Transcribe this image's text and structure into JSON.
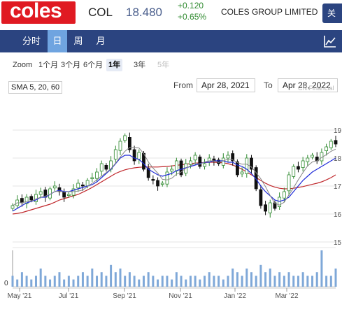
{
  "header": {
    "logo_text": "coles",
    "ticker": "COL",
    "price": "18.480",
    "change_abs": "+0.120",
    "change_pct": "+0.65%",
    "company": "COLES GROUP LIMITED",
    "close_label": "关",
    "brand_color": "#e01a22",
    "nav_color": "#2b4480"
  },
  "nav": {
    "tabs": [
      {
        "label": "分时",
        "active": false
      },
      {
        "label": "日",
        "active": true
      },
      {
        "label": "周",
        "active": false
      },
      {
        "label": "月",
        "active": false
      }
    ],
    "chart_icon": "line-chart-icon"
  },
  "zoom": {
    "label": "Zoom",
    "options": [
      {
        "label": "1个月",
        "state": "normal"
      },
      {
        "label": "3个月",
        "state": "normal"
      },
      {
        "label": "6个月",
        "state": "normal"
      },
      {
        "label": "1年",
        "state": "active"
      },
      {
        "label": "3年",
        "state": "normal"
      },
      {
        "label": "5年",
        "state": "disabled"
      }
    ]
  },
  "controls": {
    "sma_label": "SMA 5, 20, 60",
    "from_label": "From",
    "from_value": "Apr 28, 2021",
    "to_label": "To",
    "to_value": "Apr 28, 2022",
    "watermark": "CN Financial"
  },
  "chart_data": {
    "type": "line",
    "x_ticks": [
      "May '21",
      "Jul '21",
      "Sep '21",
      "Nov '21",
      "Jan '22",
      "Mar '22"
    ],
    "y_ticks": [
      "15",
      "16",
      "17",
      "18",
      "19"
    ],
    "ylim": [
      15,
      19.3
    ],
    "volume_zero_label": "0",
    "grid": true,
    "colors": {
      "up": "#2f8a2f",
      "down": "#111111",
      "sma5": "#888888",
      "sma20": "#1f2bd8",
      "sma60": "#c0282c",
      "volume": "#7fa8d8"
    },
    "close": [
      16.3,
      16.5,
      16.4,
      16.6,
      16.5,
      16.7,
      16.8,
      16.6,
      16.9,
      17.0,
      16.8,
      16.6,
      16.7,
      16.9,
      17.1,
      17.0,
      17.2,
      17.3,
      17.5,
      17.8,
      17.6,
      17.9,
      18.3,
      18.6,
      18.8,
      18.3,
      17.9,
      18.2,
      17.6,
      17.3,
      17.2,
      17.0,
      17.1,
      17.5,
      17.6,
      17.9,
      17.4,
      17.8,
      17.9,
      18.1,
      17.7,
      17.8,
      18.0,
      17.9,
      17.8,
      18.0,
      18.1,
      17.9,
      17.4,
      17.5,
      18.0,
      17.6,
      16.9,
      16.3,
      16.1,
      16.4,
      16.2,
      16.6,
      16.8,
      17.4,
      17.7,
      17.6,
      17.9,
      18.0,
      18.1,
      17.9,
      18.2,
      18.4,
      18.6,
      18.5
    ],
    "sma20": [
      16.1,
      16.2,
      16.3,
      16.4,
      16.45,
      16.5,
      16.6,
      16.6,
      16.7,
      16.8,
      16.85,
      16.8,
      16.8,
      16.85,
      16.9,
      16.95,
      17.0,
      17.05,
      17.15,
      17.3,
      17.45,
      17.6,
      17.8,
      18.0,
      18.1,
      18.1,
      18.0,
      17.95,
      17.8,
      17.6,
      17.5,
      17.4,
      17.35,
      17.4,
      17.45,
      17.55,
      17.6,
      17.65,
      17.7,
      17.75,
      17.8,
      17.85,
      17.85,
      17.9,
      17.9,
      17.9,
      17.85,
      17.85,
      17.75,
      17.7,
      17.6,
      17.45,
      17.25,
      17.0,
      16.8,
      16.65,
      16.5,
      16.45,
      16.5,
      16.6,
      16.8,
      17.0,
      17.2,
      17.35,
      17.5,
      17.6,
      17.7,
      17.8,
      17.9,
      18.0
    ],
    "sma60": [
      16.0,
      16.02,
      16.05,
      16.1,
      16.15,
      16.2,
      16.25,
      16.3,
      16.35,
      16.42,
      16.5,
      16.55,
      16.6,
      16.65,
      16.7,
      16.78,
      16.86,
      16.95,
      17.05,
      17.15,
      17.25,
      17.35,
      17.45,
      17.52,
      17.58,
      17.62,
      17.65,
      17.67,
      17.68,
      17.68,
      17.68,
      17.68,
      17.69,
      17.7,
      17.72,
      17.74,
      17.76,
      17.78,
      17.8,
      17.82,
      17.83,
      17.84,
      17.85,
      17.85,
      17.84,
      17.83,
      17.8,
      17.75,
      17.68,
      17.6,
      17.5,
      17.4,
      17.3,
      17.2,
      17.1,
      17.02,
      16.96,
      16.92,
      16.9,
      16.9,
      16.92,
      16.95,
      16.98,
      17.02,
      17.06,
      17.1,
      17.15,
      17.22,
      17.3,
      17.4
    ],
    "volume": [
      0.3,
      0.2,
      0.4,
      0.3,
      0.2,
      0.3,
      0.5,
      0.3,
      0.2,
      0.3,
      0.4,
      0.2,
      0.3,
      0.2,
      0.3,
      0.4,
      0.3,
      0.5,
      0.3,
      0.4,
      0.3,
      0.6,
      0.4,
      0.5,
      0.3,
      0.4,
      0.3,
      0.2,
      0.3,
      0.4,
      0.3,
      0.2,
      0.3,
      0.3,
      0.2,
      0.4,
      0.3,
      0.2,
      0.3,
      0.3,
      0.2,
      0.3,
      0.4,
      0.3,
      0.3,
      0.2,
      0.3,
      0.5,
      0.4,
      0.3,
      0.5,
      0.4,
      0.3,
      0.6,
      0.4,
      0.5,
      0.3,
      0.4,
      0.3,
      0.4,
      0.3,
      0.3,
      0.4,
      0.3,
      0.3,
      0.4,
      1.0,
      0.3,
      0.3,
      0.5
    ]
  }
}
